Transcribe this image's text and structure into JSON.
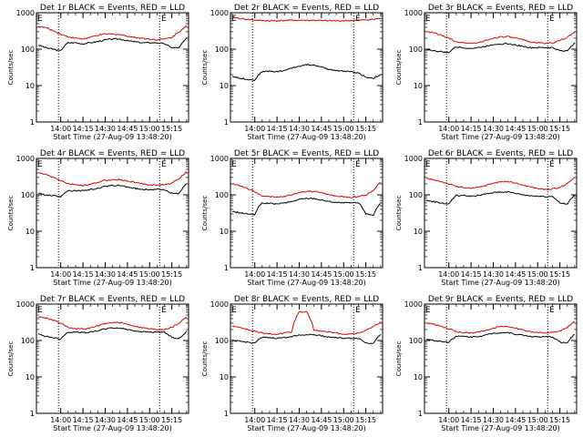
{
  "chart_data": [
    {
      "type": "line",
      "title": "Det 1r BLACK = Events, RED = LLD",
      "xlabel": "Start Time (27-Aug-09 13:48:20)",
      "ylabel": "Counts/sec",
      "yscale": "log",
      "ylim": [
        1,
        1000
      ],
      "xticks": [
        "14:00",
        "14:15",
        "14:30",
        "14:45",
        "15:00",
        "15:15"
      ],
      "yticks": [
        "1",
        "10",
        "100",
        "1000"
      ],
      "corner_marks": [
        "E",
        "E"
      ],
      "grid": false,
      "colors": {
        "events": "#000000",
        "lld": "#e00000",
        "markers": "#000000"
      },
      "series": [
        {
          "name": "Events",
          "color": "#000000",
          "values": [
            130,
            110,
            100,
            90,
            150,
            150,
            140,
            150,
            160,
            180,
            190,
            190,
            170,
            160,
            150,
            150,
            150,
            140,
            110,
            110,
            200
          ]
        },
        {
          "name": "LLD",
          "color": "#e00000",
          "values": [
            420,
            390,
            320,
            260,
            220,
            200,
            190,
            210,
            240,
            260,
            260,
            250,
            230,
            210,
            200,
            190,
            180,
            190,
            210,
            300,
            450
          ]
        }
      ]
    },
    {
      "type": "line",
      "title": "Det 2r BLACK = Events, RED = LLD",
      "xlabel": "Start Time (27-Aug-09 13:48:20)",
      "ylabel": "Counts/sec",
      "yscale": "log",
      "ylim": [
        1,
        1000
      ],
      "xticks": [
        "14:00",
        "14:15",
        "14:30",
        "14:45",
        "15:00",
        "15:15"
      ],
      "yticks": [
        "1",
        "10",
        "100",
        "1000"
      ],
      "corner_marks": [
        "E",
        "E"
      ],
      "grid": false,
      "colors": {
        "events": "#000000",
        "lld": "#e00000",
        "markers": "#000000"
      },
      "series": [
        {
          "name": "Events",
          "color": "#000000",
          "values": [
            18,
            16,
            15,
            14,
            24,
            25,
            24,
            26,
            30,
            34,
            38,
            36,
            32,
            28,
            26,
            25,
            24,
            22,
            17,
            16,
            20
          ]
        },
        {
          "name": "LLD",
          "color": "#e00000",
          "values": [
            760,
            700,
            660,
            630,
            610,
            600,
            600,
            610,
            620,
            620,
            620,
            620,
            610,
            600,
            600,
            600,
            610,
            620,
            640,
            660,
            700
          ]
        }
      ]
    },
    {
      "type": "line",
      "title": "Det 3r BLACK = Events, RED = LLD",
      "xlabel": "Start Time (27-Aug-09 13:48:20)",
      "ylabel": "Counts/sec",
      "yscale": "log",
      "ylim": [
        1,
        1000
      ],
      "xticks": [
        "14:00",
        "14:15",
        "14:30",
        "14:45",
        "15:00",
        "15:15"
      ],
      "yticks": [
        "1",
        "10",
        "100",
        "1000"
      ],
      "corner_marks": [
        "E",
        "E"
      ],
      "grid": false,
      "colors": {
        "events": "#000000",
        "lld": "#e00000",
        "markers": "#000000"
      },
      "series": [
        {
          "name": "Events",
          "color": "#000000",
          "values": [
            100,
            90,
            85,
            80,
            115,
            110,
            105,
            110,
            120,
            135,
            140,
            140,
            130,
            120,
            110,
            110,
            110,
            110,
            90,
            90,
            150
          ]
        },
        {
          "name": "LLD",
          "color": "#e00000",
          "values": [
            300,
            280,
            240,
            200,
            160,
            150,
            145,
            150,
            170,
            200,
            220,
            220,
            200,
            180,
            160,
            150,
            145,
            150,
            170,
            210,
            300
          ]
        }
      ]
    },
    {
      "type": "line",
      "title": "Det 4r BLACK = Events, RED = LLD",
      "xlabel": "Start Time (27-Aug-09 13:48:20)",
      "ylabel": "Counts/sec",
      "yscale": "log",
      "ylim": [
        1,
        1000
      ],
      "xticks": [
        "14:00",
        "14:15",
        "14:30",
        "14:45",
        "15:00",
        "15:15"
      ],
      "yticks": [
        "1",
        "10",
        "100",
        "1000"
      ],
      "corner_marks": [
        "E",
        "E"
      ],
      "grid": false,
      "colors": {
        "events": "#000000",
        "lld": "#e00000",
        "markers": "#000000"
      },
      "series": [
        {
          "name": "Events",
          "color": "#000000",
          "values": [
            110,
            100,
            95,
            90,
            130,
            130,
            130,
            140,
            150,
            170,
            180,
            180,
            165,
            150,
            140,
            140,
            140,
            140,
            110,
            110,
            200
          ]
        },
        {
          "name": "LLD",
          "color": "#e00000",
          "values": [
            400,
            360,
            300,
            250,
            200,
            190,
            180,
            190,
            220,
            250,
            260,
            260,
            240,
            220,
            200,
            190,
            185,
            190,
            210,
            280,
            420
          ]
        }
      ]
    },
    {
      "type": "line",
      "title": "Det 5r BLACK = Events, RED = LLD",
      "xlabel": "Start Time (27-Aug-09 13:48:20)",
      "ylabel": "Counts/sec",
      "yscale": "log",
      "ylim": [
        1,
        1000
      ],
      "xticks": [
        "14:00",
        "14:15",
        "14:30",
        "14:45",
        "15:00",
        "15:15"
      ],
      "yticks": [
        "1",
        "10",
        "100",
        "1000"
      ],
      "corner_marks": [
        "E",
        "E"
      ],
      "grid": false,
      "colors": {
        "events": "#000000",
        "lld": "#e00000",
        "markers": "#000000"
      },
      "series": [
        {
          "name": "Events",
          "color": "#000000",
          "values": [
            35,
            32,
            30,
            28,
            60,
            58,
            56,
            60,
            65,
            75,
            80,
            80,
            72,
            66,
            62,
            60,
            60,
            60,
            30,
            28,
            60
          ]
        },
        {
          "name": "LLD",
          "color": "#e00000",
          "values": [
            200,
            180,
            150,
            120,
            95,
            88,
            85,
            90,
            100,
            115,
            125,
            125,
            115,
            100,
            92,
            88,
            85,
            90,
            100,
            130,
            220
          ]
        }
      ]
    },
    {
      "type": "line",
      "title": "Det 6r BLACK = Events, RED = LLD",
      "xlabel": "Start Time (27-Aug-09 13:48:20)",
      "ylabel": "Counts/sec",
      "yscale": "log",
      "ylim": [
        1,
        1000
      ],
      "xticks": [
        "14:00",
        "14:15",
        "14:30",
        "14:45",
        "15:00",
        "15:15"
      ],
      "yticks": [
        "1",
        "10",
        "100",
        "1000"
      ],
      "corner_marks": [
        "E",
        "E"
      ],
      "grid": false,
      "colors": {
        "events": "#000000",
        "lld": "#e00000",
        "markers": "#000000"
      },
      "series": [
        {
          "name": "Events",
          "color": "#000000",
          "values": [
            70,
            65,
            60,
            55,
            95,
            95,
            92,
            95,
            105,
            115,
            120,
            120,
            110,
            100,
            95,
            92,
            90,
            90,
            60,
            55,
            100
          ]
        },
        {
          "name": "LLD",
          "color": "#e00000",
          "values": [
            280,
            260,
            230,
            200,
            170,
            160,
            150,
            160,
            180,
            210,
            230,
            230,
            210,
            185,
            165,
            150,
            140,
            145,
            160,
            200,
            300
          ]
        }
      ]
    },
    {
      "type": "line",
      "title": "Det 7r BLACK = Events, RED = LLD",
      "xlabel": "Start Time (27-Aug-09 13:48:20)",
      "ylabel": "Counts/sec",
      "yscale": "log",
      "ylim": [
        1,
        1000
      ],
      "xticks": [
        "14:00",
        "14:15",
        "14:30",
        "14:45",
        "15:00",
        "15:15"
      ],
      "yticks": [
        "1",
        "10",
        "100",
        "1000"
      ],
      "corner_marks": [
        "E",
        "E"
      ],
      "grid": false,
      "colors": {
        "events": "#000000",
        "lld": "#e00000",
        "markers": "#000000"
      },
      "series": [
        {
          "name": "Events",
          "color": "#000000",
          "values": [
            150,
            130,
            120,
            110,
            170,
            170,
            165,
            170,
            185,
            210,
            220,
            220,
            200,
            185,
            175,
            170,
            170,
            170,
            120,
            110,
            180
          ]
        },
        {
          "name": "LLD",
          "color": "#e00000",
          "values": [
            450,
            420,
            360,
            300,
            230,
            215,
            205,
            220,
            250,
            290,
            310,
            310,
            280,
            250,
            225,
            210,
            200,
            205,
            230,
            300,
            450
          ]
        }
      ]
    },
    {
      "type": "line",
      "title": "Det 8r BLACK = Events, RED = LLD",
      "xlabel": "Start Time (27-Aug-09 13:48:20)",
      "ylabel": "Counts/sec",
      "yscale": "log",
      "ylim": [
        1,
        1000
      ],
      "xticks": [
        "14:00",
        "14:15",
        "14:30",
        "14:45",
        "15:00",
        "15:15"
      ],
      "yticks": [
        "1",
        "10",
        "100",
        "1000"
      ],
      "corner_marks": [
        "E",
        "E"
      ],
      "grid": false,
      "colors": {
        "events": "#000000",
        "lld": "#e00000",
        "markers": "#000000"
      },
      "series": [
        {
          "name": "Events",
          "color": "#000000",
          "values": [
            100,
            95,
            90,
            85,
            120,
            120,
            115,
            120,
            130,
            140,
            145,
            145,
            135,
            125,
            120,
            115,
            115,
            115,
            85,
            85,
            150
          ]
        },
        {
          "name": "LLD",
          "color": "#e00000",
          "values": [
            250,
            230,
            200,
            180,
            160,
            150,
            150,
            160,
            170,
            600,
            600,
            190,
            180,
            170,
            160,
            150,
            150,
            160,
            190,
            240,
            320
          ]
        }
      ]
    },
    {
      "type": "line",
      "title": "Det 9r BLACK = Events, RED = LLD",
      "xlabel": "Start Time (27-Aug-09 13:48:20)",
      "ylabel": "Counts/sec",
      "yscale": "log",
      "ylim": [
        1,
        1000
      ],
      "xticks": [
        "14:00",
        "14:15",
        "14:30",
        "14:45",
        "15:00",
        "15:15"
      ],
      "yticks": [
        "1",
        "10",
        "100",
        "1000"
      ],
      "corner_marks": [
        "E",
        "E"
      ],
      "grid": false,
      "colors": {
        "events": "#000000",
        "lld": "#e00000",
        "markers": "#000000"
      },
      "series": [
        {
          "name": "Events",
          "color": "#000000",
          "values": [
            110,
            100,
            95,
            90,
            130,
            130,
            125,
            130,
            140,
            160,
            165,
            165,
            150,
            140,
            130,
            125,
            125,
            125,
            90,
            85,
            150
          ]
        },
        {
          "name": "LLD",
          "color": "#e00000",
          "values": [
            300,
            280,
            240,
            210,
            175,
            165,
            160,
            170,
            190,
            220,
            240,
            240,
            220,
            195,
            175,
            165,
            160,
            165,
            180,
            230,
            330
          ]
        }
      ]
    }
  ]
}
